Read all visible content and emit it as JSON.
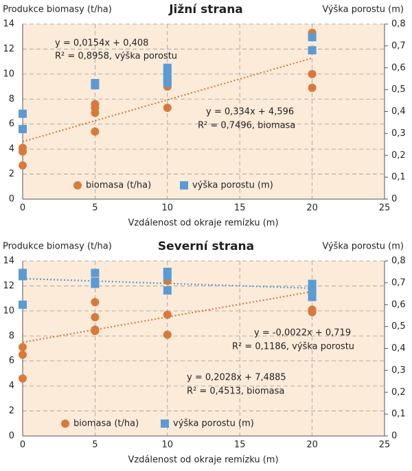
{
  "chart_data": [
    {
      "type": "scatter",
      "title": "Jižní strana",
      "y_label": "Produkce biomasy (t/ha)",
      "y2_label": "Výška porostu (m)",
      "x_label": "Vzdálenost od okraje remízku (m)",
      "xlim": [
        0,
        25
      ],
      "xticks": [
        0,
        5,
        10,
        15,
        20,
        25
      ],
      "ylim": [
        0,
        14
      ],
      "yticks": [
        0,
        2,
        4,
        6,
        8,
        10,
        12,
        14
      ],
      "y2lim": [
        0,
        0.8
      ],
      "y2ticks": [
        0,
        {
          "value": 0.1,
          "label": "0,1"
        },
        {
          "value": 0.2,
          "label": "0,2"
        },
        {
          "value": 0.3,
          "label": "0,3"
        },
        {
          "value": 0.4,
          "label": "0,4"
        },
        {
          "value": 0.5,
          "label": "0,5"
        },
        {
          "value": 0.6,
          "label": "0,6"
        },
        {
          "value": 0.7,
          "label": "0,7"
        },
        {
          "value": 0.8,
          "label": "0,8"
        }
      ],
      "grid": true,
      "series": [
        {
          "name": "biomasa (t/ha)",
          "color": "#d9793a",
          "marker": "circle",
          "x": [
            0,
            0,
            0,
            5,
            5,
            5,
            5,
            10,
            10,
            10,
            20,
            20,
            20
          ],
          "values": [
            4.1,
            3.8,
            2.7,
            7.6,
            7.3,
            6.9,
            5.4,
            9.2,
            9.0,
            7.3,
            13.3,
            10.0,
            8.9
          ]
        },
        {
          "name": "výška porostu (m)",
          "color": "#5b9bd5",
          "marker": "square",
          "axis": "y2",
          "x": [
            0,
            0,
            5,
            5,
            10,
            10,
            10,
            10,
            20,
            20
          ],
          "values": [
            0.39,
            0.32,
            0.53,
            0.52,
            0.6,
            0.575,
            0.55,
            0.53,
            0.74,
            0.68
          ]
        }
      ],
      "trendlines": [
        {
          "color": "#d9793a",
          "slope": 0.334,
          "intercept": 4.596,
          "x_range": [
            0,
            20
          ]
        }
      ],
      "annotations": [
        "y = 0,0154x + 0,408",
        "R² = 0,8958, výška porostu",
        "y = 0,334x + 4,596",
        "R² = 0,7496, biomasa"
      ]
    },
    {
      "type": "scatter",
      "title": "Severní strana",
      "y_label": "Produkce biomasy (t/ha)",
      "y2_label": "Výška porostu (m)",
      "x_label": "Vzdálenost od okraje remízku (m)",
      "xlim": [
        0,
        25
      ],
      "xticks": [
        0,
        5,
        10,
        15,
        20,
        25
      ],
      "ylim": [
        0,
        14
      ],
      "yticks": [
        0,
        2,
        4,
        6,
        8,
        10,
        12,
        14
      ],
      "y2lim": [
        0,
        0.8
      ],
      "y2ticks": [
        0,
        {
          "value": 0.1,
          "label": "0,1"
        },
        {
          "value": 0.2,
          "label": "0,2"
        },
        {
          "value": 0.3,
          "label": "0,3"
        },
        {
          "value": 0.4,
          "label": "0,4"
        },
        {
          "value": 0.5,
          "label": "0,5"
        },
        {
          "value": 0.6,
          "label": "0,6"
        },
        {
          "value": 0.7,
          "label": "0,7"
        },
        {
          "value": 0.8,
          "label": "0,8"
        }
      ],
      "grid": true,
      "series": [
        {
          "name": "biomasa (t/ha)",
          "color": "#d9793a",
          "marker": "circle",
          "x": [
            0,
            0,
            0,
            5,
            5,
            5,
            5,
            10,
            10,
            10,
            20,
            20
          ],
          "values": [
            7.1,
            6.5,
            4.6,
            10.7,
            9.5,
            8.5,
            8.4,
            12.4,
            9.7,
            8.1,
            10.1,
            9.9
          ]
        },
        {
          "name": "výška porostu (m)",
          "color": "#5b9bd5",
          "marker": "square",
          "axis": "y2",
          "x": [
            0,
            0,
            0,
            5,
            5,
            5,
            10,
            10,
            10,
            20,
            20,
            20
          ],
          "values": [
            0.745,
            0.73,
            0.6,
            0.745,
            0.705,
            0.695,
            0.75,
            0.73,
            0.665,
            0.695,
            0.66,
            0.635
          ]
        }
      ],
      "trendlines": [
        {
          "color": "#5b9bd5",
          "axis": "y2",
          "slope": -0.0022,
          "intercept": 0.719,
          "x_range": [
            0,
            20
          ]
        },
        {
          "color": "#d9793a",
          "slope": 0.2028,
          "intercept": 7.4885,
          "x_range": [
            0,
            20
          ]
        }
      ],
      "annotations": [
        "y = -0,0022x + 0,719",
        "R² = 0,1186, výška porostu",
        "y = 0,2028x + 7,4885",
        "R² = 0,4513, biomasa"
      ]
    }
  ]
}
